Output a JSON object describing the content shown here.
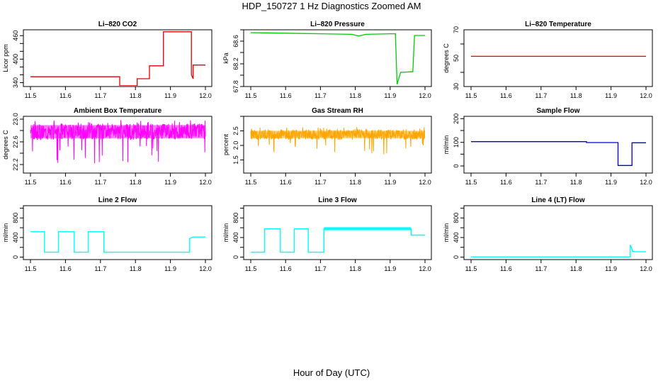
{
  "figure": {
    "title": "HDP_150727  1 Hz Diagnostics Zoomed AM",
    "xlabel": "Hour of Day (UTC)"
  },
  "chart_data": [
    {
      "type": "line",
      "title": "Li–820 CO2",
      "ylabel": "Licor ppm",
      "color": "#e00000",
      "xlim": [
        11.5,
        12.0
      ],
      "xticks": [
        "11.5",
        "11.6",
        "11.7",
        "11.8",
        "11.9",
        "12.0"
      ],
      "ylim": [
        330,
        475
      ],
      "yticks": [
        "340",
        "400",
        "460"
      ],
      "tick_step": 20,
      "series": [
        {
          "x": [
            11.5,
            11.755,
            11.755,
            11.805,
            11.805,
            11.84,
            11.84,
            11.88,
            11.88,
            11.96,
            11.96,
            11.965,
            11.965,
            12.0
          ],
          "y": [
            355,
            355,
            332,
            332,
            350,
            350,
            383,
            383,
            470,
            470,
            360,
            350,
            385,
            385
          ]
        }
      ]
    },
    {
      "type": "line",
      "title": "Li–820 Pressure",
      "ylabel": "kPa",
      "color": "#00cc00",
      "xlim": [
        11.5,
        12.0
      ],
      "xticks": [
        "11.5",
        "11.6",
        "11.7",
        "11.8",
        "11.9",
        "12.0"
      ],
      "ylim": [
        67.8,
        68.8
      ],
      "yticks": [
        "67.8",
        "68.2",
        "68.6"
      ],
      "tick_step": 0.2,
      "series": [
        {
          "x": [
            11.5,
            11.6,
            11.7,
            11.79,
            11.81,
            11.83,
            11.9,
            11.915,
            11.92,
            11.93,
            11.962,
            11.965,
            11.97,
            12.0
          ],
          "y": [
            68.75,
            68.74,
            68.73,
            68.72,
            68.69,
            68.72,
            68.73,
            68.73,
            67.84,
            68.05,
            68.06,
            68.06,
            68.7,
            68.7
          ]
        }
      ]
    },
    {
      "type": "line",
      "title": "Li–820 Temperature",
      "ylabel": "degrees C",
      "color": "#e00000",
      "xlim": [
        11.5,
        12.0
      ],
      "xticks": [
        "11.5",
        "11.6",
        "11.7",
        "11.8",
        "11.9",
        "12.0"
      ],
      "ylim": [
        30,
        70
      ],
      "yticks": [
        "30",
        "50",
        "70"
      ],
      "tick_step": 20,
      "series": [
        {
          "x": [
            11.5,
            12.0
          ],
          "y": [
            51.3,
            51.3
          ]
        }
      ]
    },
    {
      "type": "line",
      "title": "Ambient Box Temperature",
      "ylabel": "degrees C",
      "color": "#ff00ff",
      "xlim": [
        11.5,
        12.0
      ],
      "xticks": [
        "11.5",
        "11.6",
        "11.7",
        "11.8",
        "11.9",
        "12.0"
      ],
      "ylim": [
        22.05,
        23.05
      ],
      "yticks": [
        "22.2",
        "22.6",
        "23.0"
      ],
      "tick_step": 0.2,
      "band": {
        "low": 22.64,
        "high": 22.92
      }
    },
    {
      "type": "line",
      "title": "Gas Stream RH",
      "ylabel": "percent",
      "color": "#ffa500",
      "xlim": [
        11.5,
        12.0
      ],
      "xticks": [
        "11.5",
        "11.6",
        "11.7",
        "11.8",
        "11.9",
        "12.0"
      ],
      "ylim": [
        1.05,
        3.0
      ],
      "yticks": [
        "1.5",
        "2.0",
        "2.5"
      ],
      "tick_step": 0.5,
      "band": {
        "low": 2.2,
        "high": 2.55
      }
    },
    {
      "type": "line",
      "title": "Sample Flow",
      "ylabel": "ml/min",
      "color": "#0000cc",
      "xlim": [
        11.5,
        12.0
      ],
      "xticks": [
        "11.5",
        "11.6",
        "11.7",
        "11.8",
        "11.9",
        "12.0"
      ],
      "ylim": [
        -30,
        210
      ],
      "yticks": [
        "0",
        "100",
        "200"
      ],
      "tick_step": 50,
      "series": [
        {
          "x": [
            11.5,
            11.83,
            11.83,
            11.92,
            11.92,
            11.96,
            11.96,
            12.0
          ],
          "y": [
            103,
            103,
            99,
            99,
            2,
            2,
            98,
            98
          ]
        }
      ]
    },
    {
      "type": "line",
      "title": "Line 2 Flow",
      "ylabel": "ml/min",
      "color": "#00ffff",
      "xlim": [
        11.5,
        12.0
      ],
      "xticks": [
        "11.5",
        "11.6",
        "11.7",
        "11.8",
        "11.9",
        "12.0"
      ],
      "ylim": [
        -50,
        1050
      ],
      "yticks": [
        "0",
        "400",
        "800"
      ],
      "tick_step": 200,
      "series": [
        {
          "x": [
            11.5,
            11.54,
            11.54,
            11.58,
            11.58,
            11.625,
            11.625,
            11.665,
            11.665,
            11.71,
            11.71,
            11.955,
            11.955,
            11.965,
            12.0
          ],
          "y": [
            520,
            520,
            100,
            100,
            520,
            520,
            100,
            100,
            520,
            520,
            100,
            100,
            380,
            410,
            410
          ]
        }
      ]
    },
    {
      "type": "line",
      "title": "Line 3 Flow",
      "ylabel": "ml/min",
      "color": "#00ffff",
      "xlim": [
        11.5,
        12.0
      ],
      "xticks": [
        "11.5",
        "11.6",
        "11.7",
        "11.8",
        "11.9",
        "12.0"
      ],
      "ylim": [
        -50,
        1050
      ],
      "yticks": [
        "0",
        "400",
        "800"
      ],
      "tick_step": 200,
      "series": [
        {
          "x": [
            11.5,
            11.54,
            11.54,
            11.585,
            11.585,
            11.625,
            11.625,
            11.665,
            11.665,
            11.71,
            11.71,
            11.96,
            11.96,
            12.0
          ],
          "y": [
            100,
            100,
            580,
            580,
            100,
            100,
            580,
            580,
            100,
            100,
            580,
            580,
            450,
            450
          ]
        }
      ]
    },
    {
      "type": "line",
      "title": "Line 4 (LT) Flow",
      "ylabel": "ml/min",
      "color": "#00ffff",
      "xlim": [
        11.5,
        12.0
      ],
      "xticks": [
        "11.5",
        "11.6",
        "11.7",
        "11.8",
        "11.9",
        "12.0"
      ],
      "ylim": [
        -50,
        1050
      ],
      "yticks": [
        "0",
        "400",
        "800"
      ],
      "tick_step": 200,
      "series": [
        {
          "x": [
            11.5,
            11.955,
            11.955,
            11.96,
            11.962,
            11.97,
            12.0
          ],
          "y": [
            5,
            5,
            250,
            160,
            120,
            110,
            110
          ]
        }
      ]
    }
  ]
}
